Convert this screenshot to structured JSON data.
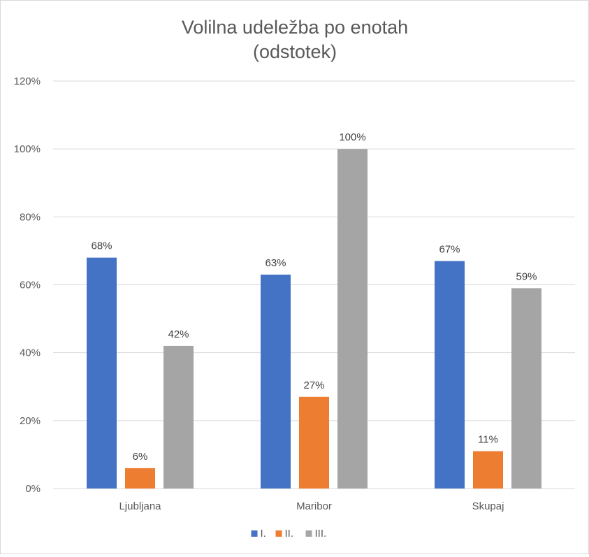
{
  "chart_data": {
    "type": "bar",
    "title": "Volilna udeležba po enotah",
    "subtitle": "(odstotek)",
    "categories": [
      "Ljubljana",
      "Maribor",
      "Skupaj"
    ],
    "series": [
      {
        "name": "I.",
        "color": "#4472C4",
        "values": [
          68,
          63,
          67
        ],
        "labels": [
          "68%",
          "63%",
          "67%"
        ]
      },
      {
        "name": "II.",
        "color": "#ED7D31",
        "values": [
          6,
          27,
          11
        ],
        "labels": [
          "6%",
          "27%",
          "11%"
        ]
      },
      {
        "name": "III.",
        "color": "#A5A5A5",
        "values": [
          42,
          100,
          59
        ],
        "labels": [
          "42%",
          "100%",
          "59%"
        ]
      }
    ],
    "ylim": [
      0,
      120
    ],
    "yticks": [
      0,
      20,
      40,
      60,
      80,
      100,
      120
    ],
    "ytick_labels": [
      "0%",
      "20%",
      "40%",
      "60%",
      "80%",
      "100%",
      "120%"
    ],
    "xlabel": "",
    "ylabel": "",
    "grid": true,
    "legend_position": "bottom"
  }
}
